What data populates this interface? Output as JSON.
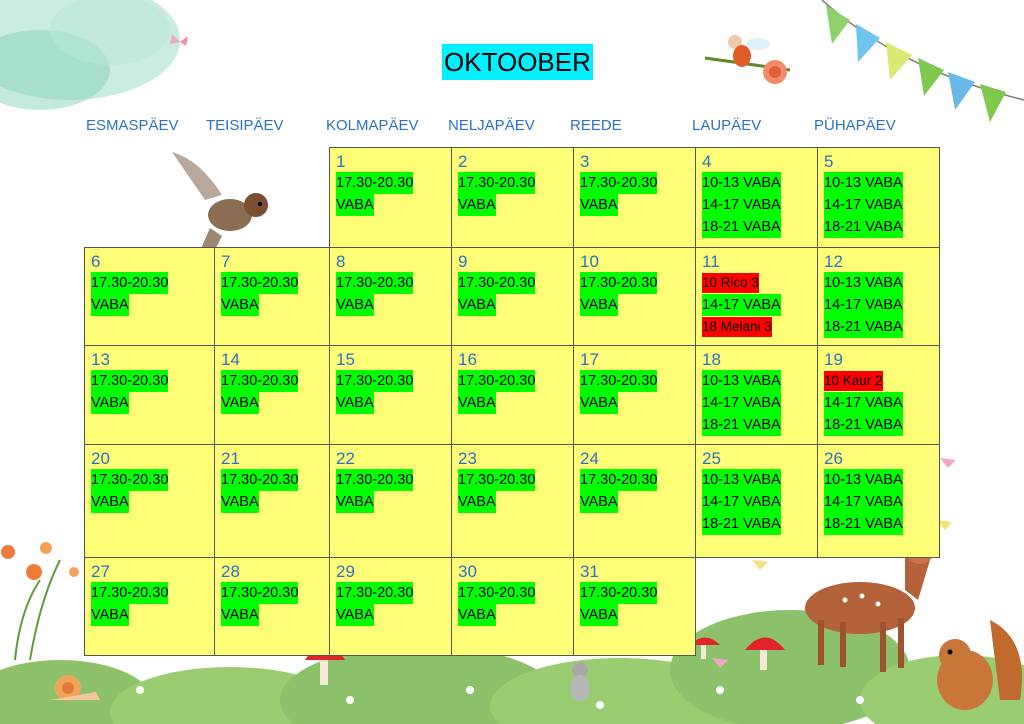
{
  "month_title": "OKTOOBER",
  "weekdays": [
    "ESMASPÄEV",
    "TEISIPÄEV",
    "KOLMAPÄEV",
    "NELJAPÄEV",
    "REEDE",
    "LAUPÄEV",
    "PÜHAPÄEV"
  ],
  "colors": {
    "cell": "#ffff77",
    "free": "#00ff00",
    "booked": "#ff0000",
    "title_bg": "#00f0ff",
    "text_blue": "#2b72c4"
  },
  "days": [
    {
      "day": "1",
      "slots": [
        {
          "text": "17.30-20.30",
          "status": "free"
        },
        {
          "text": "VABA",
          "status": "free"
        }
      ]
    },
    {
      "day": "2",
      "slots": [
        {
          "text": "17.30-20.30",
          "status": "free"
        },
        {
          "text": "VABA",
          "status": "free"
        }
      ]
    },
    {
      "day": "3",
      "slots": [
        {
          "text": "17.30-20.30",
          "status": "free"
        },
        {
          "text": "VABA",
          "status": "free"
        }
      ]
    },
    {
      "day": "4",
      "slots": [
        {
          "text": "10-13 VABA",
          "status": "free"
        },
        {
          "text": "14-17 VABA",
          "status": "free"
        },
        {
          "text": "18-21 VABA",
          "status": "free"
        }
      ]
    },
    {
      "day": "5",
      "slots": [
        {
          "text": "10-13 VABA",
          "status": "free"
        },
        {
          "text": "14-17 VABA",
          "status": "free"
        },
        {
          "text": "18-21 VABA",
          "status": "free"
        }
      ]
    },
    {
      "day": "6",
      "slots": [
        {
          "text": "17.30-20.30",
          "status": "free"
        },
        {
          "text": "VABA",
          "status": "free"
        }
      ]
    },
    {
      "day": "7",
      "slots": [
        {
          "text": "17.30-20.30",
          "status": "free"
        },
        {
          "text": "VABA",
          "status": "free"
        }
      ]
    },
    {
      "day": "8",
      "slots": [
        {
          "text": "17.30-20.30",
          "status": "free"
        },
        {
          "text": "VABA",
          "status": "free"
        }
      ]
    },
    {
      "day": "9",
      "slots": [
        {
          "text": "17.30-20.30",
          "status": "free"
        },
        {
          "text": "VABA",
          "status": "free"
        }
      ]
    },
    {
      "day": "10",
      "slots": [
        {
          "text": "17.30-20.30",
          "status": "free"
        },
        {
          "text": "VABA",
          "status": "free"
        }
      ]
    },
    {
      "day": "11",
      "slots": [
        {
          "text": "10 Rico 3",
          "status": "booked"
        },
        {
          "text": "14-17 VABA",
          "status": "free"
        },
        {
          "text": "18 Melani 3",
          "status": "booked"
        }
      ]
    },
    {
      "day": "12",
      "slots": [
        {
          "text": "10-13 VABA",
          "status": "free"
        },
        {
          "text": "14-17 VABA",
          "status": "free"
        },
        {
          "text": "18-21 VABA",
          "status": "free"
        }
      ]
    },
    {
      "day": "13",
      "slots": [
        {
          "text": "17.30-20.30",
          "status": "free"
        },
        {
          "text": "VABA",
          "status": "free"
        }
      ]
    },
    {
      "day": "14",
      "slots": [
        {
          "text": "17.30-20.30",
          "status": "free"
        },
        {
          "text": "VABA",
          "status": "free"
        }
      ]
    },
    {
      "day": "15",
      "slots": [
        {
          "text": "17.30-20.30",
          "status": "free"
        },
        {
          "text": "VABA",
          "status": "free"
        }
      ]
    },
    {
      "day": "16",
      "slots": [
        {
          "text": "17.30-20.30",
          "status": "free"
        },
        {
          "text": "VABA",
          "status": "free"
        }
      ]
    },
    {
      "day": "17",
      "slots": [
        {
          "text": "17.30-20.30",
          "status": "free"
        },
        {
          "text": "VABA",
          "status": "free"
        }
      ]
    },
    {
      "day": "18",
      "slots": [
        {
          "text": "10-13 VABA",
          "status": "free"
        },
        {
          "text": "14-17 VABA",
          "status": "free"
        },
        {
          "text": "18-21 VABA",
          "status": "free"
        }
      ]
    },
    {
      "day": "19",
      "slots": [
        {
          "text": "10 Kaur 2",
          "status": "booked"
        },
        {
          "text": "14-17 VABA",
          "status": "free"
        },
        {
          "text": "18-21 VABA",
          "status": "free"
        }
      ]
    },
    {
      "day": "20",
      "slots": [
        {
          "text": "17.30-20.30",
          "status": "free"
        },
        {
          "text": "VABA",
          "status": "free"
        }
      ]
    },
    {
      "day": "21",
      "slots": [
        {
          "text": "17.30-20.30",
          "status": "free"
        },
        {
          "text": "VABA",
          "status": "free"
        }
      ]
    },
    {
      "day": "22",
      "slots": [
        {
          "text": "17.30-20.30",
          "status": "free"
        },
        {
          "text": "VABA",
          "status": "free"
        }
      ]
    },
    {
      "day": "23",
      "slots": [
        {
          "text": "17.30-20.30",
          "status": "free"
        },
        {
          "text": "VABA",
          "status": "free"
        }
      ]
    },
    {
      "day": "24",
      "slots": [
        {
          "text": "17.30-20.30",
          "status": "free"
        },
        {
          "text": "VABA",
          "status": "free"
        }
      ]
    },
    {
      "day": "25",
      "slots": [
        {
          "text": "10-13 VABA",
          "status": "free"
        },
        {
          "text": "14-17 VABA",
          "status": "free"
        },
        {
          "text": "18-21 VABA",
          "status": "free"
        }
      ]
    },
    {
      "day": "26",
      "slots": [
        {
          "text": "10-13 VABA",
          "status": "free"
        },
        {
          "text": "14-17 VABA",
          "status": "free"
        },
        {
          "text": "18-21 VABA",
          "status": "free"
        }
      ]
    },
    {
      "day": "27",
      "slots": [
        {
          "text": "17.30-20.30",
          "status": "free"
        },
        {
          "text": "VABA",
          "status": "free"
        }
      ]
    },
    {
      "day": "28",
      "slots": [
        {
          "text": "17.30-20.30",
          "status": "free"
        },
        {
          "text": "VABA",
          "status": "free"
        }
      ]
    },
    {
      "day": "29",
      "slots": [
        {
          "text": "17.30-20.30",
          "status": "free"
        },
        {
          "text": "VABA",
          "status": "free"
        }
      ]
    },
    {
      "day": "30",
      "slots": [
        {
          "text": "17.30-20.30",
          "status": "free"
        },
        {
          "text": "VABA",
          "status": "free"
        }
      ]
    },
    {
      "day": "31",
      "slots": [
        {
          "text": "17.30-20.30",
          "status": "free"
        },
        {
          "text": "VABA",
          "status": "free"
        }
      ]
    }
  ],
  "decorations": [
    "watercolor-blob",
    "butterfly-icon",
    "fairy-illustration",
    "bunting-flags",
    "sparrow-illustration",
    "flowers-illustration",
    "deer-illustration",
    "squirrel-illustration",
    "snail-illustration",
    "mouse-illustration",
    "mushroom-icon",
    "grass-bushes"
  ]
}
